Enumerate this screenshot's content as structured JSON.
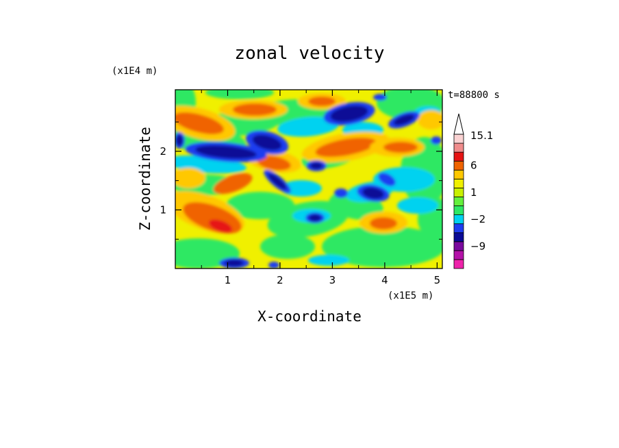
{
  "chart_data": {
    "type": "heatmap",
    "title": "zonal velocity",
    "xlabel": "X-coordinate",
    "ylabel": "Z-coordinate",
    "x_scale_label": "(x1E5 m)",
    "y_scale_label": "(x1E4 m)",
    "time_label": "t=88800 s",
    "xlim": [
      0,
      5.1
    ],
    "ylim": [
      0,
      3.05
    ],
    "x_ticks": [
      1,
      2,
      3,
      4,
      5
    ],
    "y_ticks": [
      1,
      2
    ],
    "colorbar": {
      "labels": [
        {
          "text": "15.1",
          "value": 15.1
        },
        {
          "text": "6",
          "value": 6
        },
        {
          "text": "1",
          "value": 1
        },
        {
          "text": "−2",
          "value": -2
        },
        {
          "text": "−9",
          "value": -9
        }
      ],
      "levels": [
        -15,
        -12,
        -9,
        -6,
        -3,
        -2,
        -1,
        0,
        1,
        2,
        3,
        6,
        9,
        12,
        15.1
      ],
      "colors": [
        "#ee22aa",
        "#b412a8",
        "#7a0a9e",
        "#0a0a96",
        "#1e3cf0",
        "#00d2f0",
        "#2ee864",
        "#64f03c",
        "#c8f000",
        "#f0f000",
        "#ffc800",
        "#f06400",
        "#e61414",
        "#f08c8c",
        "#fad2d2"
      ],
      "extend": "max"
    }
  }
}
